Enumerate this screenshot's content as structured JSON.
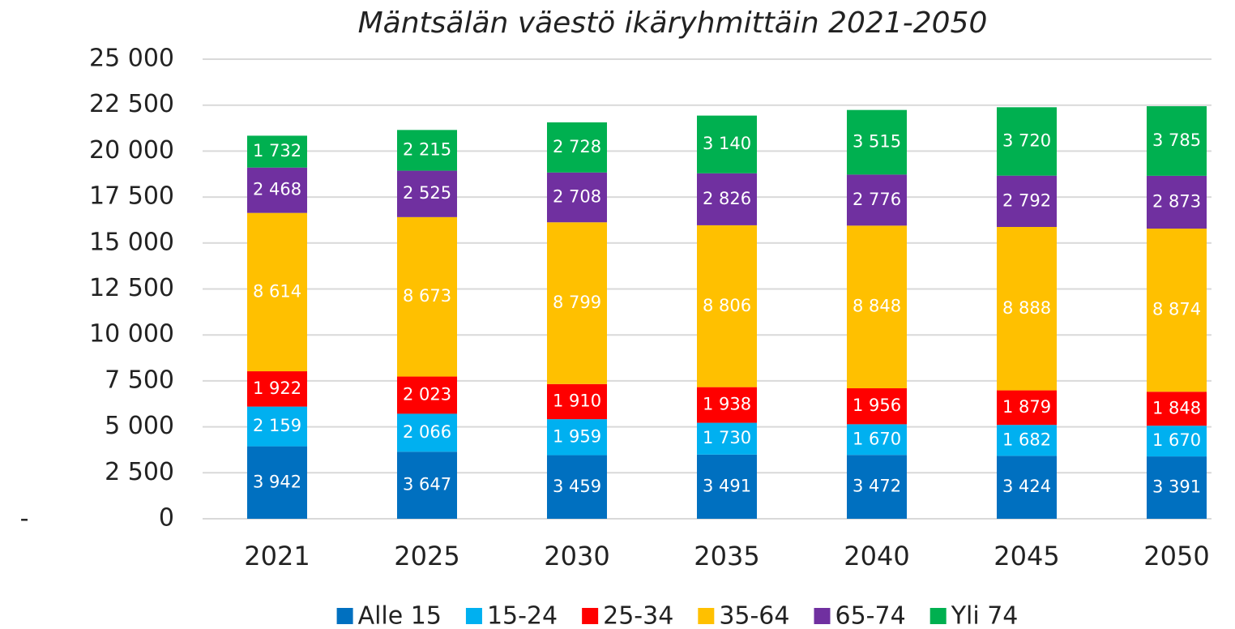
{
  "chart_data": {
    "type": "stacked_bar",
    "title": "Mäntsälän väestö ikäryhmittäin 2021-2050",
    "categories": [
      "2021",
      "2025",
      "2030",
      "2035",
      "2040",
      "2045",
      "2050"
    ],
    "series": [
      {
        "name": "Alle 15",
        "color": "#0070c0",
        "values": [
          3942,
          3647,
          3459,
          3491,
          3472,
          3424,
          3391
        ],
        "value_labels": [
          "3 942",
          "3 647",
          "3 459",
          "3 491",
          "3 472",
          "3 424",
          "3 391"
        ]
      },
      {
        "name": "15-24",
        "color": "#00b0f0",
        "values": [
          2159,
          2066,
          1959,
          1730,
          1670,
          1682,
          1670
        ],
        "value_labels": [
          "2 159",
          "2 066",
          "1 959",
          "1 730",
          "1 670",
          "1 682",
          "1 670"
        ]
      },
      {
        "name": "25-34",
        "color": "#ff0000",
        "values": [
          1922,
          2023,
          1910,
          1938,
          1956,
          1879,
          1848
        ],
        "value_labels": [
          "1 922",
          "2 023",
          "1 910",
          "1 938",
          "1 956",
          "1 879",
          "1 848"
        ]
      },
      {
        "name": "35-64",
        "color": "#ffc000",
        "values": [
          8614,
          8673,
          8799,
          8806,
          8848,
          8888,
          8874
        ],
        "value_labels": [
          "8 614",
          "8 673",
          "8 799",
          "8 806",
          "8 848",
          "8 888",
          "8 874"
        ]
      },
      {
        "name": "65-74",
        "color": "#7030a0",
        "values": [
          2468,
          2525,
          2708,
          2826,
          2776,
          2792,
          2873
        ],
        "value_labels": [
          "2 468",
          "2 525",
          "2 708",
          "2 826",
          "2 776",
          "2 792",
          "2 873"
        ]
      },
      {
        "name": "Yli 74",
        "color": "#00b050",
        "values": [
          1732,
          2215,
          2728,
          3140,
          3515,
          3720,
          3785
        ],
        "value_labels": [
          "1 732",
          "2 215",
          "2 728",
          "3 140",
          "3 515",
          "3 720",
          "3 785"
        ]
      }
    ],
    "ylim": [
      0,
      25000
    ],
    "yticks": [
      0,
      {
        "value": 2500,
        "label": "2 500"
      },
      {
        "value": 5000,
        "label": "5 000"
      },
      {
        "value": 7500,
        "label": "7 500"
      },
      {
        "value": 10000,
        "label": "10 000"
      },
      {
        "value": 12500,
        "label": "12 500"
      },
      {
        "value": 15000,
        "label": "15 000"
      },
      {
        "value": 17500,
        "label": "17 500"
      },
      {
        "value": 20000,
        "label": "20 000"
      },
      {
        "value": 22500,
        "label": "22 500"
      },
      {
        "value": 25000,
        "label": "25 000"
      }
    ],
    "annotations": [
      "-"
    ],
    "grid": true,
    "legend": "bottom"
  }
}
